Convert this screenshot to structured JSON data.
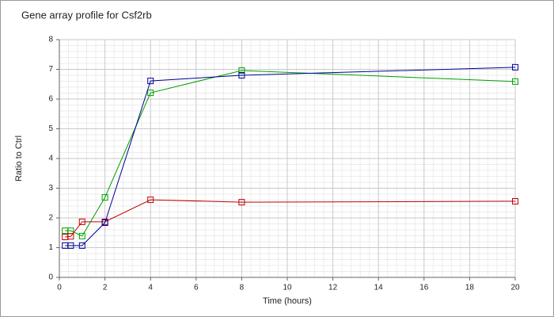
{
  "chart_data": {
    "type": "line",
    "title": "Gene array profile for Csf2rb",
    "x_label": "Time (hours)",
    "y_label": "Ratio to Ctrl",
    "x": [
      0.25,
      0.5,
      1,
      2,
      4,
      8,
      20
    ],
    "series": [
      {
        "color": "#00a000",
        "values": [
          1.57,
          1.57,
          1.39,
          2.69,
          6.21,
          6.96,
          6.59
        ]
      },
      {
        "color": "#c00000",
        "values": [
          1.36,
          1.38,
          1.87,
          1.87,
          2.61,
          2.53,
          2.56
        ]
      },
      {
        "color": "#00009a",
        "values": [
          1.07,
          1.07,
          1.07,
          1.84,
          6.61,
          6.8,
          7.07
        ]
      }
    ],
    "xlim": [
      0,
      20
    ],
    "xticks": [
      0,
      2,
      4,
      6,
      8,
      10,
      12,
      14,
      16,
      18,
      20
    ],
    "ylim": [
      0,
      8
    ],
    "yticks": [
      0,
      1,
      2,
      3,
      4,
      5,
      6,
      7,
      8
    ],
    "grid": true
  }
}
